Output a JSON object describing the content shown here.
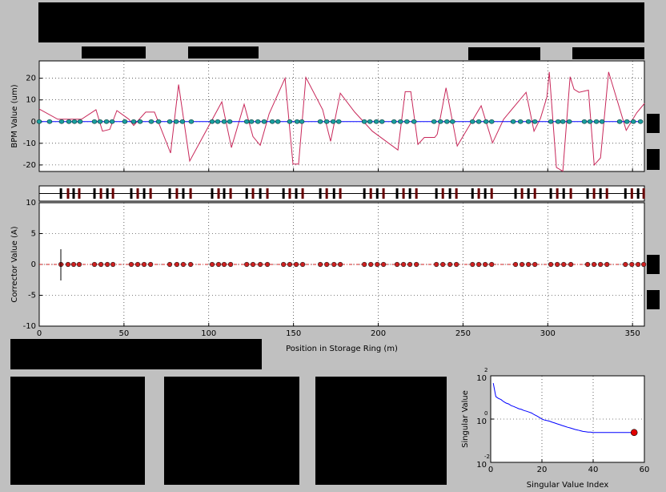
{
  "chart_data": [
    {
      "type": "line",
      "ylabel": "BPM Value (um)",
      "xlim": [
        0,
        357
      ],
      "ylim": [
        -23,
        28
      ],
      "yticks": [
        -20,
        -10,
        0,
        10,
        20
      ],
      "grid": true,
      "series": [
        {
          "color": "#c8285a",
          "x": [
            0,
            10.9,
            19.4,
            25.0,
            33.5,
            37.3,
            41.6,
            45.8,
            52.9,
            55.7,
            62.8,
            68.0,
            77.5,
            82.2,
            88.8,
            107.7,
            113.4,
            120.9,
            126.1,
            130.4,
            135.6,
            145.0,
            149.7,
            153.0,
            157.3,
            167.2,
            171.9,
            177.6,
            186.1,
            196.5,
            211.6,
            215.9,
            219.2,
            223.4,
            227.2,
            233.3,
            234.8,
            240.0,
            246.6,
            260.7,
            267.4,
            274.0,
            287.2,
            291.9,
            295.7,
            299.5,
            300.9,
            305.1,
            308.9,
            313.2,
            315.5,
            318.4,
            324.0,
            327.4,
            331.1,
            335.9,
            346.3,
            352.4,
            357.1
          ],
          "values": [
            5.8,
            1.1,
            1.1,
            1.1,
            5.5,
            -4.4,
            -3.6,
            5.1,
            1.1,
            -1.8,
            4.4,
            4.4,
            -14.5,
            17.1,
            -18.2,
            9.1,
            -12.0,
            8.0,
            -6.9,
            -10.9,
            3.6,
            20.0,
            -19.6,
            -19.6,
            20.4,
            5.5,
            -9.1,
            13.1,
            4.4,
            -4.4,
            -13.1,
            13.8,
            13.8,
            -10.5,
            -7.3,
            -7.3,
            -5.8,
            15.6,
            -11.3,
            7.3,
            -9.8,
            1.1,
            13.5,
            -4.4,
            1.5,
            11.3,
            22.9,
            -21.1,
            -22.9,
            20.7,
            14.9,
            13.5,
            14.5,
            -20.0,
            -16.7,
            22.9,
            -4.0,
            4.0,
            8.4
          ]
        },
        {
          "color": "#0000ff",
          "marker_color": "#1aa0a0",
          "x": [
            0,
            6.1,
            13.2,
            17.5,
            20.8,
            24.1,
            32.6,
            35.9,
            39.7,
            43.0,
            50.5,
            55.7,
            59.5,
            66.1,
            70.4,
            77.0,
            80.8,
            84.5,
            89.7,
            102.0,
            105.3,
            109.1,
            112.4,
            122.4,
            125.2,
            129.0,
            132.7,
            137.5,
            140.8,
            147.8,
            152.1,
            154.9,
            165.8,
            169.6,
            173.4,
            176.7,
            191.8,
            195.1,
            198.9,
            202.2,
            209.3,
            213.1,
            216.9,
            221.1,
            232.9,
            236.7,
            240.5,
            243.8,
            255.6,
            259.3,
            263.6,
            266.9,
            279.6,
            283.9,
            288.6,
            292.4,
            301.8,
            306.1,
            308.9,
            312.7,
            321.6,
            324.9,
            328.7,
            332.0,
            342.4,
            346.7,
            350.5,
            354.7
          ],
          "values": [
            0,
            0,
            0,
            0,
            0,
            0,
            0,
            0,
            0,
            0,
            0,
            0,
            0,
            0,
            0,
            0,
            0,
            0,
            0,
            0,
            0,
            0,
            0,
            0,
            0,
            0,
            0,
            0,
            0,
            0,
            0,
            0,
            0,
            0,
            0,
            0,
            0,
            0,
            0,
            0,
            0,
            0,
            0,
            0,
            0,
            0,
            0,
            0,
            0,
            0,
            0,
            0,
            0,
            0,
            0,
            0,
            0,
            0,
            0,
            0,
            0,
            0,
            0,
            0,
            0,
            0,
            0,
            0
          ]
        }
      ]
    },
    {
      "type": "scatter",
      "xlabel": "Position in Storage Ring (m)",
      "ylabel": "Corrector Value (A)",
      "xlim": [
        0,
        357
      ],
      "ylim": [
        -10,
        10
      ],
      "xticks": [
        0,
        50,
        100,
        150,
        200,
        250,
        300,
        350
      ],
      "yticks": [
        -10,
        -5,
        0,
        5,
        10
      ],
      "grid": true,
      "series": [
        {
          "color": "#d02020",
          "x": [
            12.8,
            17.0,
            20.3,
            23.6,
            32.6,
            36.4,
            40.2,
            43.5,
            54.3,
            58.1,
            61.9,
            65.7,
            77.0,
            81.2,
            85.0,
            89.3,
            102.0,
            105.8,
            109.1,
            112.9,
            122.4,
            126.1,
            130.4,
            134.6,
            144.1,
            147.8,
            151.6,
            155.4,
            165.8,
            169.6,
            173.9,
            177.6,
            191.8,
            195.6,
            199.4,
            203.1,
            211.1,
            214.9,
            218.7,
            222.5,
            234.3,
            238.1,
            242.3,
            246.1,
            255.6,
            259.3,
            263.1,
            266.9,
            281.0,
            284.8,
            288.6,
            292.4,
            301.8,
            305.6,
            309.4,
            313.6,
            323.5,
            327.3,
            331.1,
            334.9,
            345.8,
            349.6,
            353.3,
            356.6
          ],
          "values": [
            0,
            0,
            0,
            0,
            0,
            0,
            0,
            0,
            0,
            0,
            0,
            0,
            0,
            0,
            0,
            0,
            0,
            0,
            0,
            0,
            0,
            0,
            0,
            0,
            0,
            0,
            0,
            0,
            0,
            0,
            0,
            0,
            0,
            0,
            0,
            0,
            0,
            0,
            0,
            0,
            0,
            0,
            0,
            0,
            0,
            0,
            0,
            0,
            0,
            0,
            0,
            0,
            0,
            0,
            0,
            0,
            0,
            0,
            0,
            0,
            0,
            0,
            0,
            0
          ]
        }
      ]
    },
    {
      "type": "line",
      "xlabel": "Singular Value Index",
      "ylabel": "Singular Value",
      "xlim": [
        0,
        60
      ],
      "ylim": [
        0.01,
        100
      ],
      "yscale": "log",
      "xticks": [
        0,
        20,
        40,
        60
      ],
      "yticks": [
        {
          "value": 0.01,
          "label": "10",
          "exponent": "-2"
        },
        {
          "value": 1,
          "label": "10",
          "exponent": "0"
        },
        {
          "value": 100,
          "label": "10",
          "exponent": "2"
        }
      ],
      "grid": true,
      "series": [
        {
          "color": "#0000ff",
          "marker_color": "#e00000",
          "x": [
            1,
            2,
            3,
            4,
            5,
            6,
            7,
            8,
            9,
            10,
            11,
            12,
            13,
            14,
            15,
            16,
            17,
            18,
            19,
            20,
            21,
            22,
            23,
            24,
            25,
            26,
            27,
            28,
            29,
            30,
            31,
            32,
            33,
            34,
            35,
            36,
            37,
            38,
            39,
            40,
            41,
            42,
            43,
            44,
            45,
            46,
            47,
            48,
            49,
            50,
            51,
            52,
            53,
            54,
            55,
            56
          ],
          "values": [
            46,
            11,
            9,
            8,
            6.5,
            5.5,
            5,
            4.2,
            3.8,
            3.4,
            3,
            2.8,
            2.5,
            2.3,
            2.1,
            1.9,
            1.6,
            1.4,
            1.2,
            1.0,
            0.9,
            0.85,
            0.8,
            0.72,
            0.66,
            0.6,
            0.55,
            0.5,
            0.46,
            0.42,
            0.39,
            0.36,
            0.33,
            0.31,
            0.29,
            0.27,
            0.26,
            0.25,
            0.25,
            0.24,
            0.24,
            0.24,
            0.24,
            0.24,
            0.24,
            0.24,
            0.24,
            0.24,
            0.24,
            0.24,
            0.24,
            0.24,
            0.24,
            0.24,
            0.24,
            0.24
          ]
        }
      ]
    }
  ]
}
